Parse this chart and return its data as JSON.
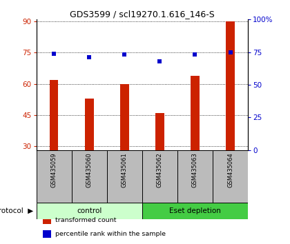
{
  "title": "GDS3599 / scl19270.1.616_146-S",
  "samples": [
    "GSM435059",
    "GSM435060",
    "GSM435061",
    "GSM435062",
    "GSM435063",
    "GSM435064"
  ],
  "transformed_counts": [
    62,
    53,
    60,
    46,
    64,
    90
  ],
  "percentile_ranks": [
    74,
    71,
    73,
    68,
    73,
    75
  ],
  "ylim_left": [
    28,
    91
  ],
  "ylim_right": [
    0,
    100
  ],
  "yticks_left": [
    30,
    45,
    60,
    75,
    90
  ],
  "yticks_right": [
    0,
    25,
    50,
    75,
    100
  ],
  "yticklabels_right": [
    "0",
    "25",
    "50",
    "75",
    "100%"
  ],
  "bar_color": "#cc2200",
  "dot_color": "#0000cc",
  "grid_color": "#000000",
  "protocol_groups": [
    {
      "label": "control",
      "indices": [
        0,
        1,
        2
      ],
      "color": "#ccffcc"
    },
    {
      "label": "Eset depletion",
      "indices": [
        3,
        4,
        5
      ],
      "color": "#44cc44"
    }
  ],
  "protocol_label": "protocol",
  "legend_items": [
    {
      "color": "#cc2200",
      "label": "transformed count"
    },
    {
      "color": "#0000cc",
      "label": "percentile rank within the sample"
    }
  ],
  "background_color": "#ffffff",
  "plot_bg_color": "#ffffff",
  "label_area_color": "#bbbbbb",
  "bar_width": 0.25
}
